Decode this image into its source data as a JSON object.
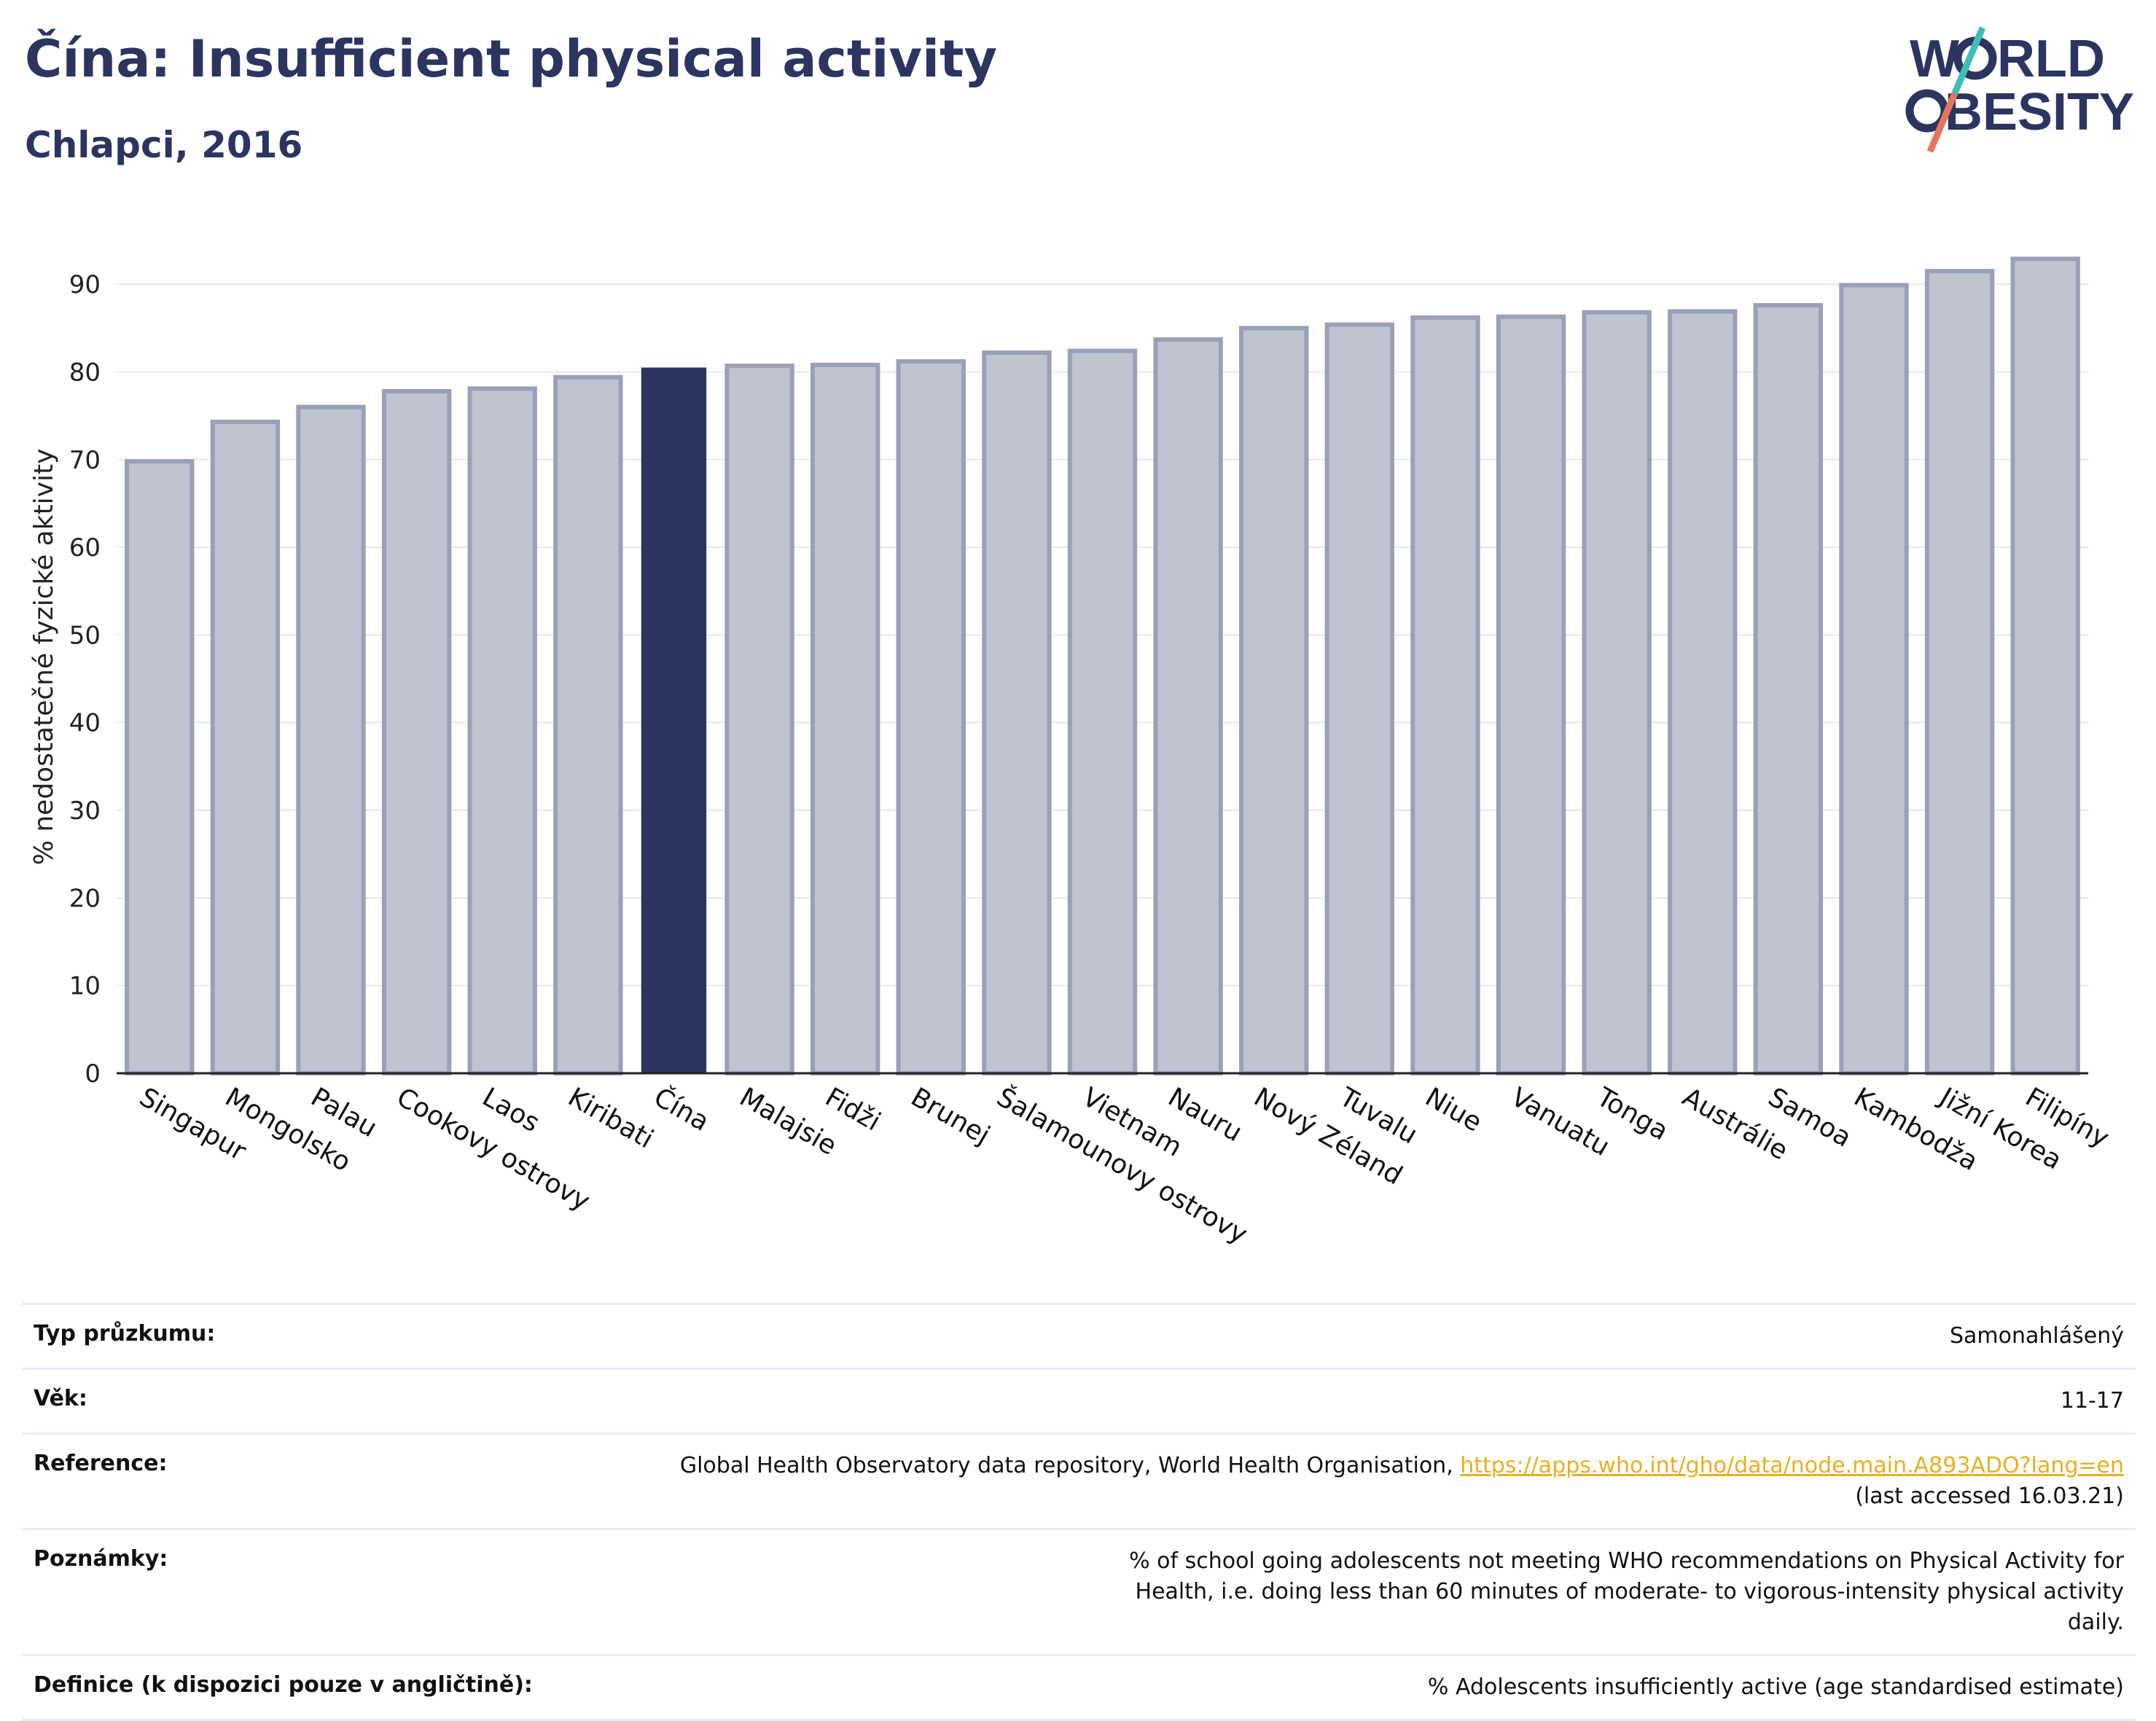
{
  "header": {
    "title": "Čína: Insufficient physical activity",
    "subtitle": "Chlapci, 2016"
  },
  "logo": {
    "line1": "W",
    "line1b": "RLD",
    "line2a": "",
    "line2b": "BESITY",
    "text": "WORLD OBESITY"
  },
  "colors": {
    "bar": "#c0c3d0",
    "bar_stroke": "#9aa0b8",
    "highlight": "#2b3560",
    "accent_teal": "#3dbfb6",
    "accent_coral": "#e8735f"
  },
  "chart_data": {
    "type": "bar",
    "title": "Čína: Insufficient physical activity",
    "subtitle": "Chlapci, 2016",
    "ylabel": "% nedostatečné fyzické aktivity",
    "xlabel": "",
    "ylim": [
      0,
      95
    ],
    "yticks": [
      0,
      10,
      20,
      30,
      40,
      50,
      60,
      70,
      80,
      90
    ],
    "grid": true,
    "highlight": "Čína",
    "categories": [
      "Singapur",
      "Mongolsko",
      "Palau",
      "Cookovy ostrovy",
      "Laos",
      "Kiribati",
      "Čína",
      "Malajsie",
      "Fidži",
      "Brunej",
      "Šalamounovy ostrovy",
      "Vietnam",
      "Nauru",
      "Nový Zéland",
      "Tuvalu",
      "Niue",
      "Vanuatu",
      "Tonga",
      "Austrálie",
      "Samoa",
      "Kambodža",
      "Jižní Korea",
      "Filipíny"
    ],
    "values": [
      69.8,
      74.3,
      76.0,
      77.8,
      78.1,
      79.4,
      80.5,
      80.7,
      80.8,
      81.2,
      82.2,
      82.4,
      83.7,
      85.0,
      85.4,
      86.2,
      86.3,
      86.8,
      86.9,
      87.6,
      89.9,
      91.5,
      92.9
    ]
  },
  "meta": {
    "rows": [
      {
        "label": "Typ průzkumu:",
        "value": "Samonahlášený"
      },
      {
        "label": "Věk:",
        "value": "11-17"
      },
      {
        "label": "Reference:",
        "value": "Global Health Observatory data repository, World Health Organisation, ",
        "link": "https://apps.who.int/gho/data/node.main.A893ADO?lang=en",
        "value2": "(last accessed 16.03.21)"
      },
      {
        "label": "Poznámky:",
        "value": "% of school going adolescents not meeting WHO recommendations on Physical Activity for Health, i.e. doing less than 60 minutes of moderate- to vigorous-intensity physical activity daily."
      },
      {
        "label": "Definice (k dispozici pouze v angličtině):",
        "value": "% Adolescents insufficiently active (age standardised estimate)"
      }
    ]
  }
}
